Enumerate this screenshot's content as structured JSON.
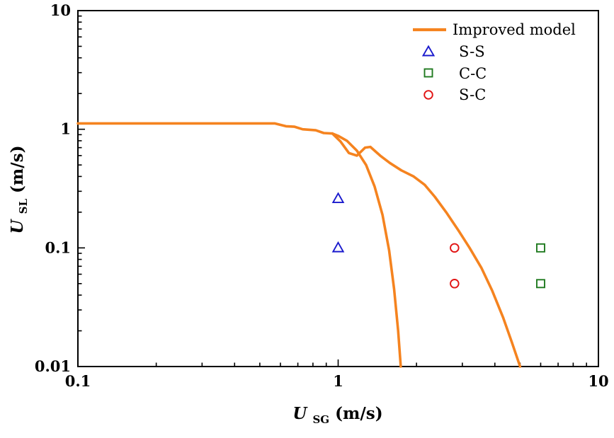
{
  "chart_data": {
    "type": "line+scatter",
    "title": "",
    "xscale": "log",
    "yscale": "log",
    "xlim": [
      0.1,
      10
    ],
    "ylim": [
      0.01,
      10
    ],
    "grid": false,
    "legend_position": "top-right",
    "xlabel_parts": {
      "symbol": "U",
      "subscript": "SG",
      "unit": " (m/s)"
    },
    "ylabel_parts": {
      "symbol": "U",
      "subscript": "SL",
      "unit": " (m/s)"
    },
    "x_tick_values": [
      0.1,
      1,
      10
    ],
    "x_tick_labels": [
      "0.1",
      "1",
      "10"
    ],
    "y_tick_values": [
      0.01,
      0.1,
      1,
      10
    ],
    "y_tick_labels": [
      "0.01",
      "0.1",
      "1",
      "10"
    ],
    "series": [
      {
        "name": "Improved model",
        "type": "line",
        "color": "#F5831F",
        "marker": "none",
        "branches": [
          [
            [
              0.1,
              1.12
            ],
            [
              0.45,
              1.12
            ],
            [
              0.57,
              1.12
            ],
            [
              0.63,
              1.06
            ],
            [
              0.68,
              1.05
            ],
            [
              0.73,
              1.0
            ],
            [
              0.82,
              0.98
            ],
            [
              0.88,
              0.93
            ],
            [
              0.95,
              0.92
            ],
            [
              1.0,
              0.88
            ],
            [
              1.08,
              0.8
            ],
            [
              1.18,
              0.66
            ],
            [
              1.28,
              0.5
            ],
            [
              1.38,
              0.33
            ],
            [
              1.48,
              0.19
            ],
            [
              1.57,
              0.095
            ],
            [
              1.64,
              0.045
            ],
            [
              1.7,
              0.02
            ],
            [
              1.74,
              0.01
            ]
          ],
          [
            [
              0.95,
              0.92
            ],
            [
              1.02,
              0.79
            ],
            [
              1.1,
              0.63
            ],
            [
              1.18,
              0.6
            ],
            [
              1.27,
              0.7
            ],
            [
              1.33,
              0.71
            ],
            [
              1.45,
              0.6
            ],
            [
              1.58,
              0.52
            ],
            [
              1.75,
              0.45
            ],
            [
              1.95,
              0.4
            ],
            [
              2.15,
              0.34
            ],
            [
              2.35,
              0.27
            ],
            [
              2.6,
              0.2
            ],
            [
              2.9,
              0.14
            ],
            [
              3.2,
              0.1
            ],
            [
              3.55,
              0.068
            ],
            [
              3.9,
              0.044
            ],
            [
              4.3,
              0.026
            ],
            [
              4.65,
              0.016
            ],
            [
              5.0,
              0.01
            ]
          ]
        ]
      },
      {
        "name": "S-S",
        "type": "scatter",
        "marker": "triangle",
        "color": "#1A1ACD",
        "points": [
          [
            1.0,
            0.26
          ],
          [
            1.0,
            0.1
          ]
        ]
      },
      {
        "name": "C-C",
        "type": "scatter",
        "marker": "square",
        "color": "#1F7A1F",
        "points": [
          [
            6.0,
            0.1
          ],
          [
            6.0,
            0.05
          ]
        ]
      },
      {
        "name": "S-C",
        "type": "scatter",
        "marker": "circle",
        "color": "#E11414",
        "points": [
          [
            2.8,
            0.1
          ],
          [
            2.8,
            0.05
          ]
        ]
      }
    ]
  }
}
